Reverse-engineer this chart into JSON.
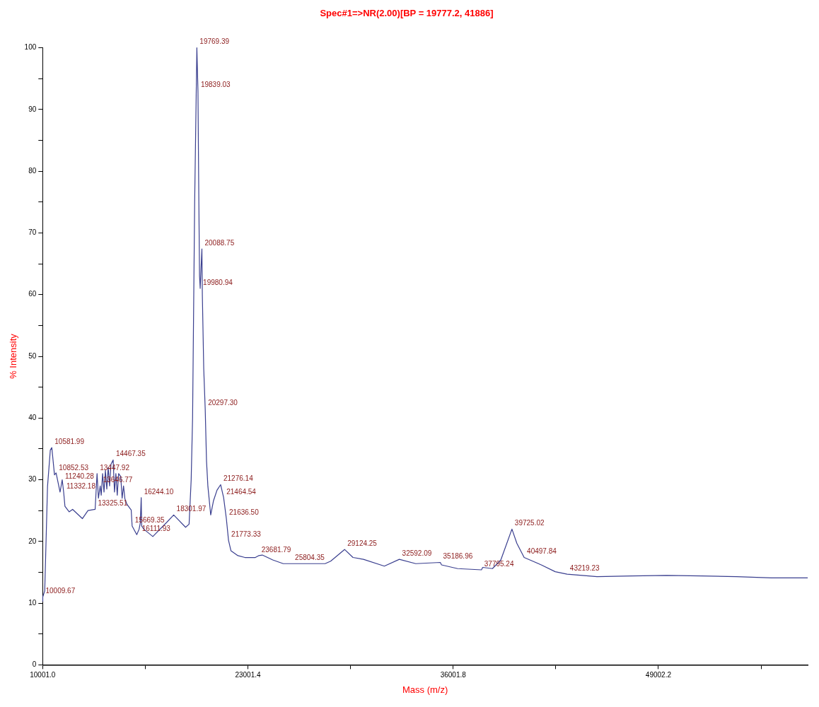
{
  "chart_data": {
    "type": "line",
    "title": "Spec#1=>NR(2.00)[BP = 19777.2, 41886]",
    "xlabel": "Mass (m/z)",
    "ylabel": "% Intensity",
    "series": [
      {
        "color": "#3a3f8f",
        "x": [
          10004,
          10009.67,
          10134,
          10310,
          10487,
          10581.99,
          10752,
          10852.53,
          11105,
          11240.28,
          11332.18,
          11414,
          11679,
          11900,
          12518,
          12872,
          13325.51,
          13447.92,
          13535,
          13646.77,
          13711,
          13800,
          13888,
          13976,
          14065,
          14153,
          14241,
          14329,
          14467.35,
          14551,
          14639,
          14727,
          14815,
          14948,
          15036,
          15125,
          15213,
          15345,
          15610,
          15669.35,
          15964,
          16111.93,
          16185,
          16244.1,
          16273,
          16406,
          16980,
          17863,
          18301.97,
          19056,
          19277,
          19409,
          19498,
          19630,
          19769.39,
          19839.03,
          19895,
          19939,
          19980.94,
          20028,
          20088.75,
          20116,
          20204,
          20297.3,
          20381,
          20469,
          20646,
          20823,
          21044,
          21276.14,
          21464.54,
          21636.5,
          21773.33,
          21927,
          22369,
          22810,
          23473,
          23681.79,
          23915,
          24577,
          25240,
          25804.35,
          27890,
          28243,
          29124.25,
          29657,
          30319,
          31644,
          32592.09,
          33632,
          35186.96,
          35266,
          36282,
          37795.24,
          37873,
          38491,
          39021,
          39725.02,
          40036,
          40497.84,
          41582,
          42465,
          43219.23,
          45115,
          47325,
          49533,
          51742,
          53950,
          56159,
          58456
        ],
        "values": [
          10.3,
          11,
          12,
          28.9,
          34.8,
          35.2,
          30.8,
          31.1,
          28,
          30,
          28,
          25.7,
          24.8,
          25.2,
          23.7,
          25,
          25.2,
          31,
          27,
          29,
          27.5,
          31,
          28,
          31.5,
          28.5,
          32,
          29,
          32.5,
          33.2,
          28,
          31,
          27.5,
          31,
          30.5,
          27,
          29,
          26.9,
          26,
          25.1,
          22.5,
          21.1,
          22,
          23,
          27.1,
          22.5,
          22,
          20.8,
          23.1,
          24.3,
          22.3,
          22.8,
          30,
          40,
          75,
          100,
          93,
          75,
          63,
          61,
          64,
          67.4,
          60,
          48,
          41.5,
          33,
          28.9,
          24.3,
          26.6,
          28.3,
          29.2,
          27.1,
          23.7,
          20.2,
          18.5,
          17.7,
          17.4,
          17.4,
          17.7,
          17.8,
          17,
          16.4,
          16.4,
          16.4,
          16.8,
          18.7,
          17.4,
          17.1,
          16,
          17.1,
          16.4,
          16.6,
          16.2,
          15.6,
          15.4,
          15.8,
          15.6,
          17,
          22,
          19.7,
          17.4,
          16.2,
          15.1,
          14.7,
          14.3,
          14.4,
          14.5,
          14.4,
          14.3,
          14.1,
          14.1
        ]
      }
    ],
    "xlim": [
      10001,
      58456
    ],
    "xticks": [
      {
        "value": 10001.0,
        "label": "10001.0"
      },
      {
        "value": 16501.2,
        "label": null
      },
      {
        "value": 23001.4,
        "label": "23001.4"
      },
      {
        "value": 29501.6,
        "label": null
      },
      {
        "value": 36001.8,
        "label": "36001.8"
      },
      {
        "value": 42502.0,
        "label": null
      },
      {
        "value": 49002.2,
        "label": "49002.2"
      },
      {
        "value": 55502.4,
        "label": null
      }
    ],
    "ylim": [
      0,
      100
    ],
    "yticks": [
      0,
      {
        "value": 5,
        "label": null
      },
      10,
      {
        "value": 15,
        "label": null
      },
      20,
      {
        "value": 25,
        "label": null
      },
      30,
      {
        "value": 35,
        "label": null
      },
      40,
      {
        "value": 45,
        "label": null
      },
      50,
      {
        "value": 55,
        "label": null
      },
      60,
      {
        "value": 65,
        "label": null
      },
      70,
      {
        "value": 75,
        "label": null
      },
      80,
      {
        "value": 85,
        "label": null
      },
      90,
      {
        "value": 95,
        "label": null
      },
      100
    ],
    "grid": false,
    "legend": false,
    "marker": "none",
    "line_style": "solid",
    "annotations": [
      {
        "text": "10009.67",
        "x": 10009.67,
        "y": 11
      },
      {
        "text": "10581.99",
        "x": 10581.99,
        "y": 35.2
      },
      {
        "text": "10852.53",
        "x": 10852.53,
        "y": 31
      },
      {
        "text": "11240.28",
        "x": 11240.28,
        "y": 30
      },
      {
        "text": "11332.18",
        "x": 11332.18,
        "y": 28
      },
      {
        "text": "13325.51",
        "x": 13325.51,
        "y": 25.2
      },
      {
        "text": "13447.92",
        "x": 13447.92,
        "y": 31
      },
      {
        "text": "13646.77",
        "x": 13646.77,
        "y": 29
      },
      {
        "text": "14467.35",
        "x": 14467.35,
        "y": 33.2
      },
      {
        "text": "15669.35",
        "x": 15669.35,
        "y": 22.5
      },
      {
        "text": "16111.93",
        "x": 16111.93,
        "y": 22
      },
      {
        "text": "16244.10",
        "x": 16244.1,
        "y": 27.1
      },
      {
        "text": "18301.97",
        "x": 18301.97,
        "y": 24.3
      },
      {
        "text": "19769.39",
        "x": 19769.39,
        "y": 100
      },
      {
        "text": "19839.03",
        "x": 19839.03,
        "y": 93
      },
      {
        "text": "20088.75",
        "x": 20088.75,
        "y": 67.4
      },
      {
        "text": "19980.94",
        "x": 19980.94,
        "y": 61
      },
      {
        "text": "20297.30",
        "x": 20297.3,
        "y": 41.5
      },
      {
        "text": "21276.14",
        "x": 21276.14,
        "y": 29.2
      },
      {
        "text": "21464.54",
        "x": 21464.54,
        "y": 27.1
      },
      {
        "text": "21636.50",
        "x": 21636.5,
        "y": 23.7
      },
      {
        "text": "21773.33",
        "x": 21773.33,
        "y": 20.2
      },
      {
        "text": "23681.79",
        "x": 23681.79,
        "y": 17.7
      },
      {
        "text": "25804.35",
        "x": 25804.35,
        "y": 16.4
      },
      {
        "text": "29124.25",
        "x": 29124.25,
        "y": 18.7
      },
      {
        "text": "32592.09",
        "x": 32592.09,
        "y": 17.1
      },
      {
        "text": "35186.96",
        "x": 35186.96,
        "y": 16.6
      },
      {
        "text": "37795.24",
        "x": 37795.24,
        "y": 15.4
      },
      {
        "text": "39725.02",
        "x": 39725.02,
        "y": 22
      },
      {
        "text": "40497.84",
        "x": 40497.84,
        "y": 17.4
      },
      {
        "text": "43219.23",
        "x": 43219.23,
        "y": 14.7
      }
    ]
  }
}
